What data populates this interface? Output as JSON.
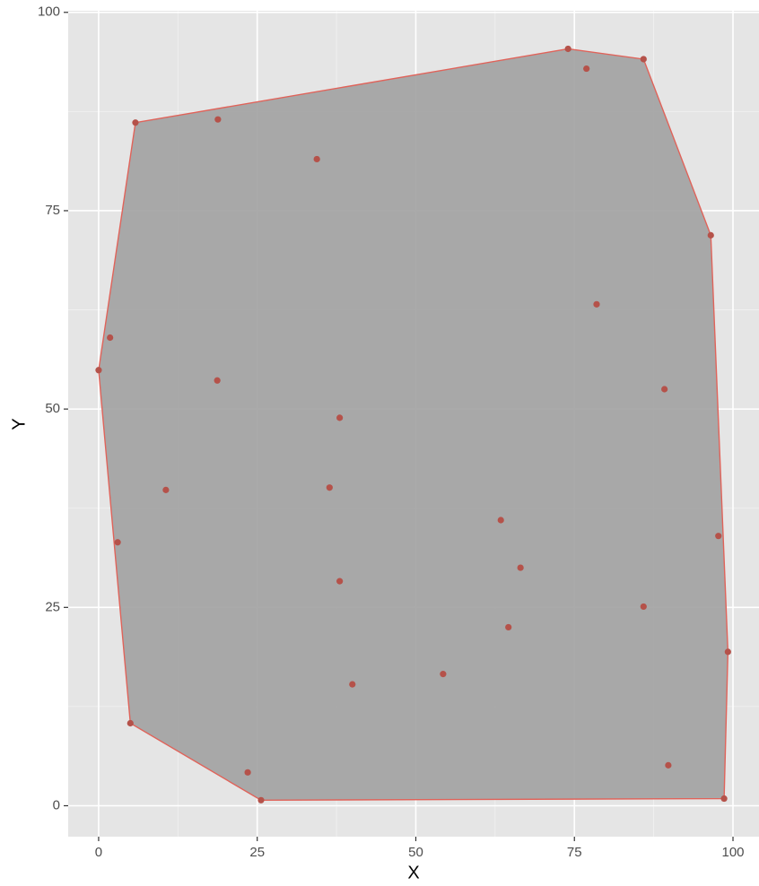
{
  "chart_data": {
    "type": "scatter",
    "x_label": "X",
    "y_label": "Y",
    "x": [
      5.8,
      18.8,
      34.4,
      74.0,
      76.9,
      85.9,
      96.5,
      78.5,
      89.2,
      1.8,
      0,
      18.7,
      38.0,
      10.6,
      36.4,
      3.0,
      63.4,
      66.5,
      97.7,
      38.0,
      85.9,
      64.6,
      99.2,
      54.3,
      40.0,
      5.0,
      23.5,
      25.6,
      89.8,
      98.6
    ],
    "y": [
      86.1,
      86.5,
      81.5,
      95.4,
      92.9,
      94.1,
      71.9,
      63.2,
      52.5,
      59.0,
      54.9,
      53.6,
      48.9,
      39.8,
      40.1,
      33.2,
      36.0,
      30.0,
      34.0,
      28.3,
      25.1,
      22.5,
      19.4,
      16.6,
      15.3,
      10.4,
      4.2,
      0.7,
      5.1,
      0.9
    ],
    "color": "#b5524a",
    "hull_fill": "#a3a3a3",
    "hull_stroke": "#e0635a",
    "xlim": [
      -4.8,
      104.1
    ],
    "ylim": [
      -3.9,
      100.2
    ],
    "xticks": [
      0,
      25,
      50,
      75,
      100
    ],
    "yticks": [
      0,
      25,
      50,
      75,
      100
    ],
    "grid": true
  }
}
